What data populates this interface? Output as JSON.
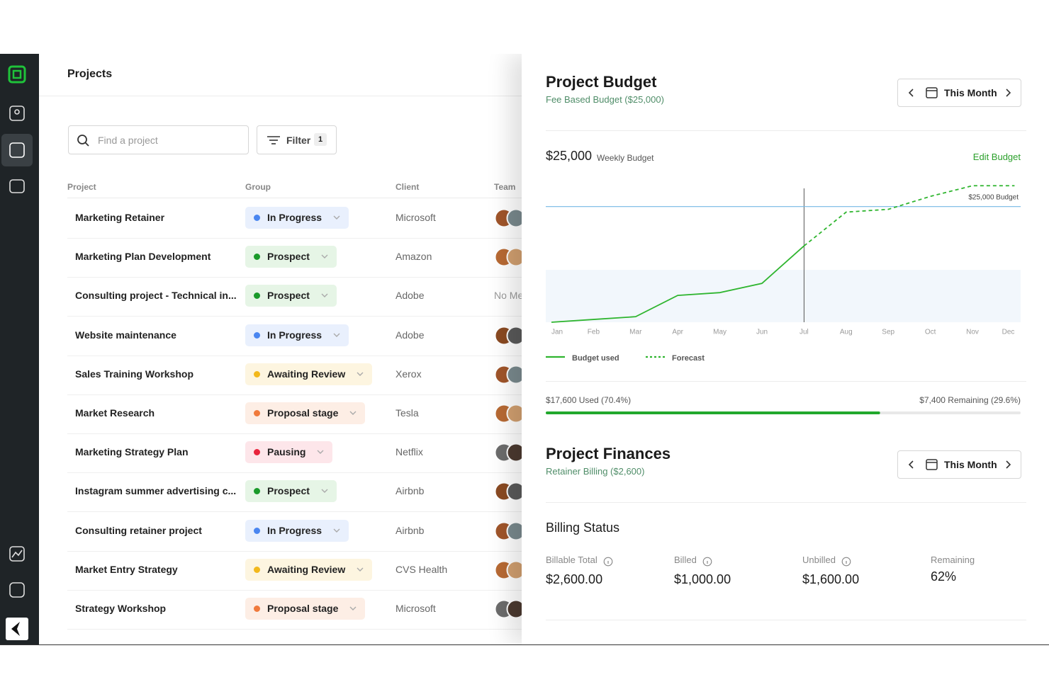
{
  "projects": {
    "title": "Projects",
    "search_placeholder": "Find a project",
    "filter": "Filter",
    "filter_count": 1,
    "columns": [
      "Project",
      "Group",
      "Client",
      "Team"
    ],
    "rows": [
      {
        "name": "Marketing Retainer",
        "group": "In Progress",
        "dot": "#4a86f0",
        "bg": "#e9f0fd",
        "client": "Microsoft"
      },
      {
        "name": "Marketing Plan Development",
        "group": "Prospect",
        "dot": "#1a9a2a",
        "bg": "#e6f5e6",
        "client": "Amazon"
      },
      {
        "name": "Consulting project - Technical in...",
        "group": "Prospect",
        "dot": "#1a9a2a",
        "bg": "#e6f5e6",
        "client": "Adobe",
        "team": "No Members"
      },
      {
        "name": "Website maintenance",
        "group": "In Progress",
        "dot": "#4a86f0",
        "bg": "#e9f0fd",
        "client": "Adobe"
      },
      {
        "name": "Sales Training Workshop",
        "group": "Awaiting Review",
        "dot": "#f2b81c",
        "bg": "#fdf5e0",
        "client": "Xerox"
      },
      {
        "name": "Market Research",
        "group": "Proposal stage",
        "dot": "#f07a3c",
        "bg": "#fdeee5",
        "client": "Tesla"
      },
      {
        "name": "Marketing Strategy Plan",
        "group": "Pausing",
        "dot": "#e8243c",
        "bg": "#fde6ea",
        "client": "Netflix"
      },
      {
        "name": "Instagram summer advertising c...",
        "group": "Prospect",
        "dot": "#1a9a2a",
        "bg": "#e6f5e6",
        "client": "Airbnb"
      },
      {
        "name": "Consulting retainer project",
        "group": "In Progress",
        "dot": "#4a86f0",
        "bg": "#e9f0fd",
        "client": "Airbnb"
      },
      {
        "name": "Market Entry Strategy",
        "group": "Awaiting Review",
        "dot": "#f2b81c",
        "bg": "#fdf5e0",
        "client": "CVS Health"
      },
      {
        "name": "Strategy Workshop",
        "group": "Proposal stage",
        "dot": "#f07a3c",
        "bg": "#fdeee5",
        "client": "Microsoft"
      }
    ]
  },
  "budget": {
    "title": "Project Budget",
    "subtitle": "Fee Based Budget ($25,000)",
    "period": "This Month",
    "amount": "$25,000",
    "amount_note": "Weekly Budget",
    "edit": "Edit Budget",
    "used_label": "$17,600 Used (70.4%)",
    "remaining_label": "$7,400 Remaining (29.6%)",
    "used_percent": 70.4
  },
  "chart_data": {
    "type": "line",
    "categories": [
      "Jan",
      "Feb",
      "Mar",
      "Apr",
      "May",
      "Jun",
      "Jul",
      "Aug",
      "Sep",
      "Oct",
      "Nov",
      "Dec"
    ],
    "series": [
      {
        "name": "Budget used",
        "color": "#2fb52f",
        "values": [
          0,
          600,
          1200,
          5800,
          6400,
          8400,
          16500,
          null,
          null,
          null,
          null,
          null
        ]
      },
      {
        "name": "Forecast",
        "color": "#2fb52f",
        "dashed": true,
        "values": [
          null,
          null,
          null,
          null,
          null,
          null,
          16500,
          23800,
          24400,
          27200,
          29500,
          29500
        ]
      }
    ],
    "ylim": [
      0,
      30000
    ],
    "budget_line": {
      "value": 25000,
      "label": "$25,000 Budget",
      "color": "#74b8e4"
    }
  },
  "finances": {
    "title": "Project Finances",
    "subtitle": "Retainer Billing ($2,600)",
    "period": "This Month",
    "billing_title": "Billing Status",
    "items": [
      {
        "label": "Billable Total",
        "value": "$2,600.00",
        "info": true
      },
      {
        "label": "Billed",
        "value": "$1,000.00",
        "info": true
      },
      {
        "label": "Unbilled",
        "value": "$1,600.00",
        "info": true
      },
      {
        "label": "Remaining",
        "value": "62%",
        "info": false
      }
    ]
  }
}
